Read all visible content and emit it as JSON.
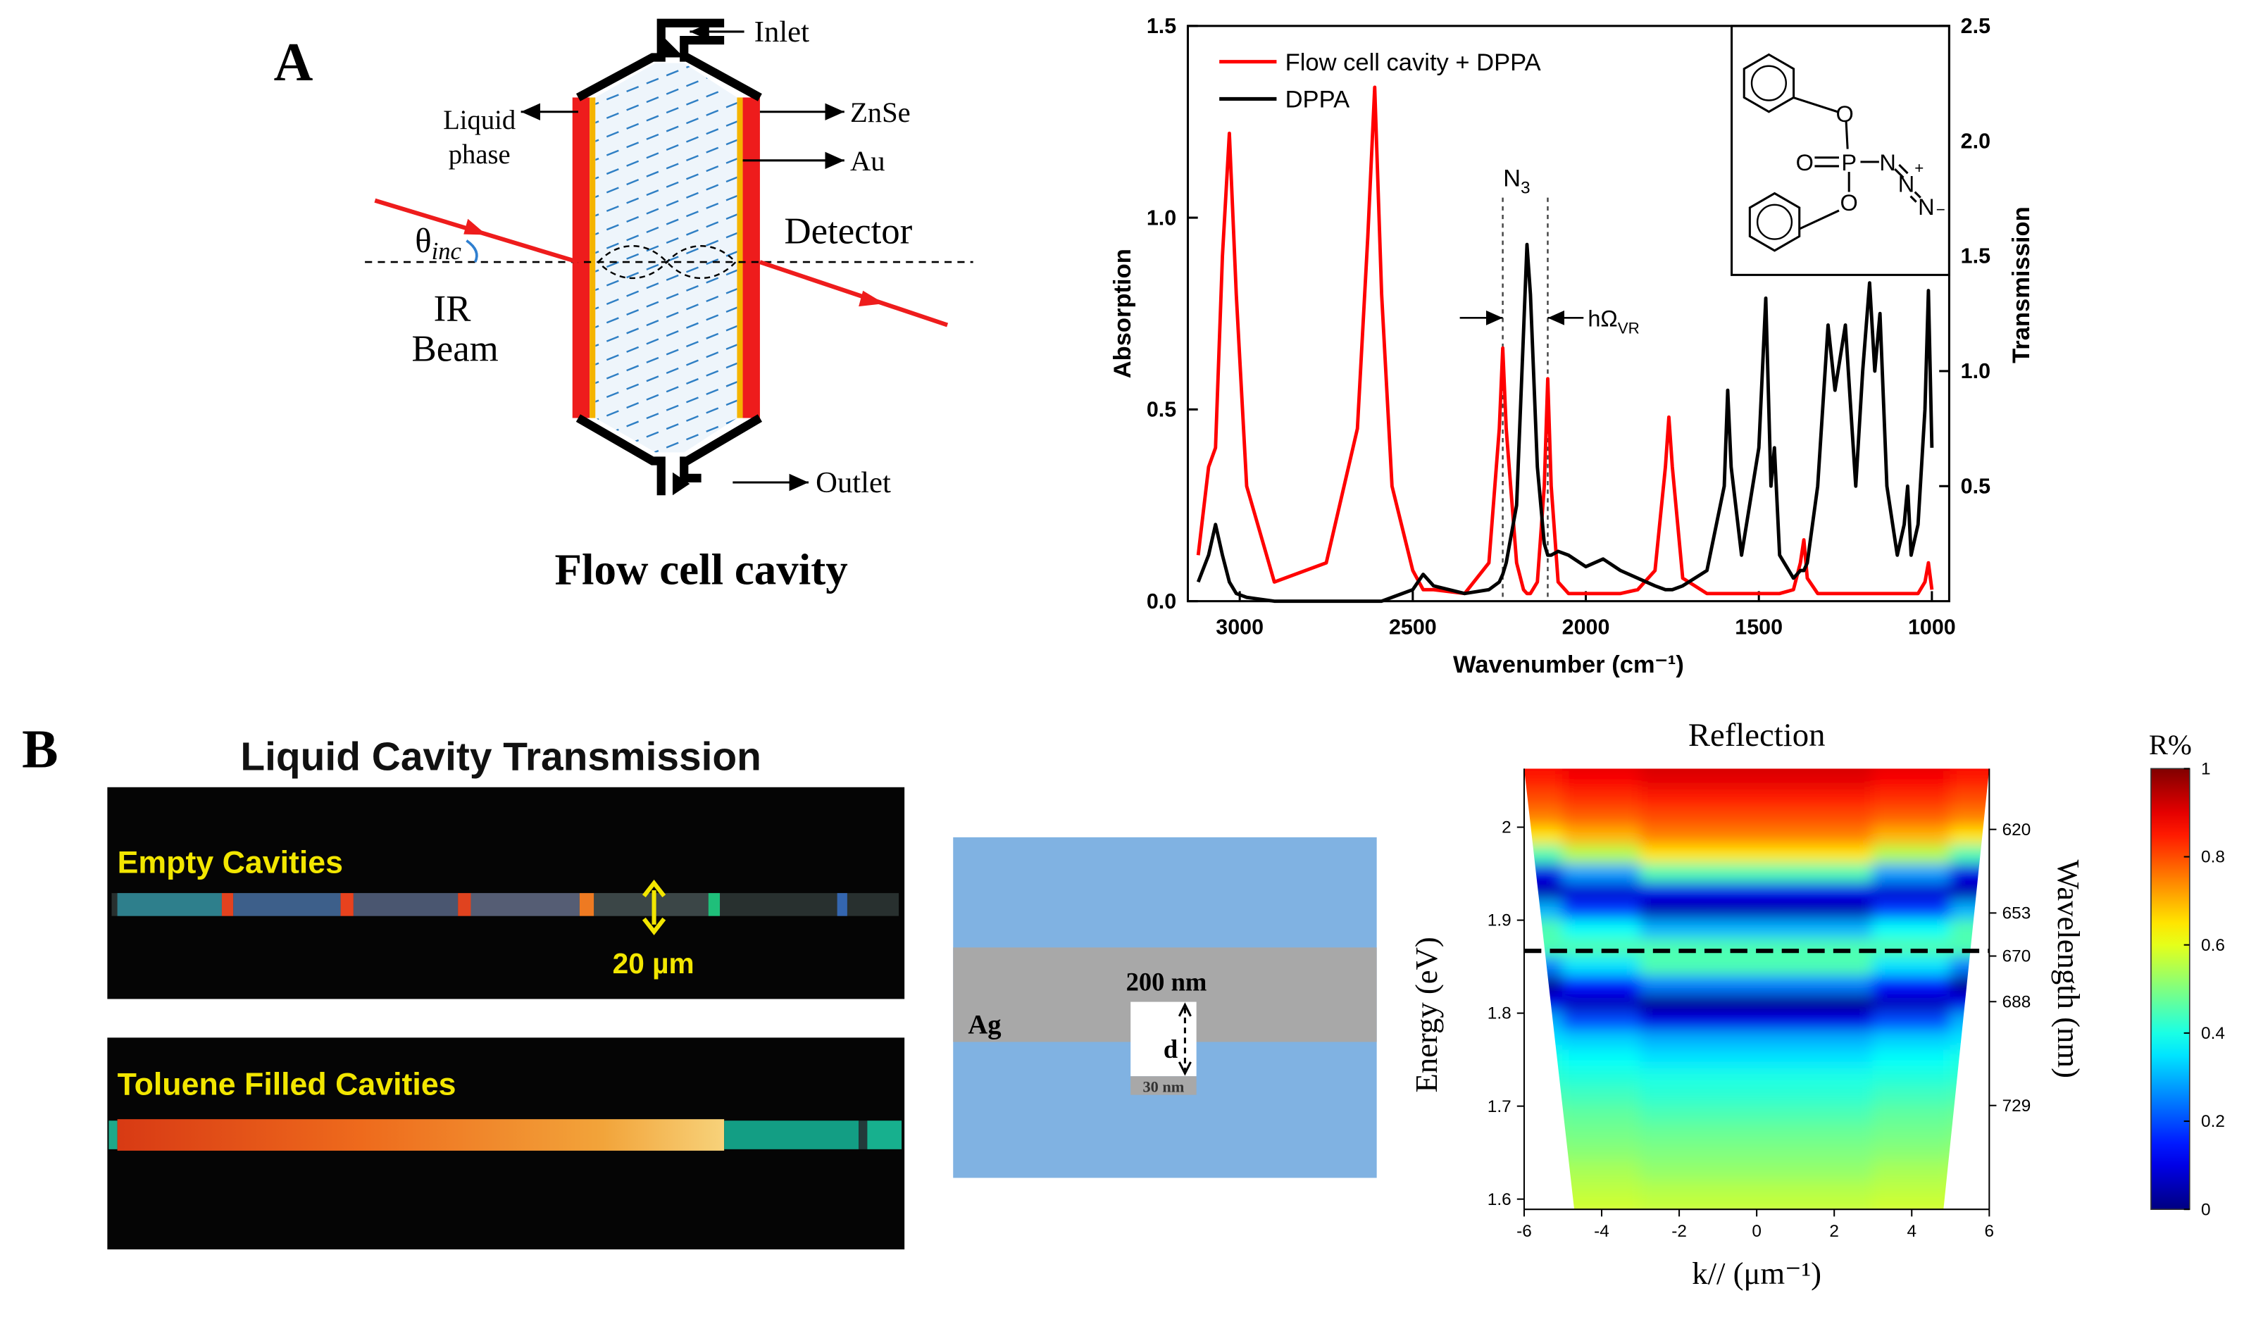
{
  "panel_a": {
    "label": "A",
    "flow_cell": {
      "title": "Flow cell cavity",
      "inlet": "Inlet",
      "liquid_phase": [
        "Liquid",
        "phase"
      ],
      "znse": "ZnSe",
      "au": "Au",
      "theta": {
        "main": "θ",
        "sub": "inc"
      },
      "detector": "Detector",
      "ir_beam": [
        "IR",
        "Beam"
      ],
      "outlet": "Outlet"
    }
  },
  "panel_b": {
    "label": "B",
    "photo": {
      "title": "Liquid Cavity Transmission",
      "top_label": "Empty Cavities",
      "scale": "20 µm",
      "bottom_label": "Toluene Filled Cavities"
    },
    "schematic": {
      "thickness": "200 nm",
      "metal": "Ag",
      "gap": "d",
      "gap_width": "30 nm"
    }
  },
  "chart_data": [
    {
      "type": "line",
      "xlabel": "Wavenumber (cm⁻¹)",
      "ylabel": "Absorption",
      "y2label": "Transmission",
      "x": [
        3120,
        3090,
        3070,
        3050,
        3030,
        3010,
        2980,
        2900,
        2750,
        2660,
        2630,
        2610,
        2590,
        2560,
        2500,
        2470,
        2440,
        2350,
        2280,
        2250,
        2240,
        2230,
        2200,
        2180,
        2170,
        2160,
        2140,
        2120,
        2110,
        2100,
        2080,
        2050,
        2000,
        1950,
        1900,
        1850,
        1800,
        1770,
        1760,
        1750,
        1720,
        1650,
        1600,
        1590,
        1580,
        1550,
        1500,
        1480,
        1465,
        1455,
        1440,
        1400,
        1380,
        1370,
        1360,
        1330,
        1300,
        1280,
        1250,
        1220,
        1200,
        1180,
        1165,
        1150,
        1130,
        1100,
        1080,
        1070,
        1060,
        1040,
        1020,
        1010,
        1000
      ],
      "xlim": [
        3150,
        950
      ],
      "xticks": [
        3000,
        2500,
        2000,
        1500,
        1000
      ],
      "ylim": [
        0,
        1.5
      ],
      "yticks": [
        {
          "value": 0,
          "label": "0.0"
        },
        {
          "value": 0.5,
          "label": "0.5"
        },
        {
          "value": 1,
          "label": "1.0"
        },
        {
          "value": 1.5,
          "label": "1.5"
        }
      ],
      "y2lim": [
        0,
        2.5
      ],
      "y2ticks": [
        {
          "value": 0.5,
          "label": "0.5"
        },
        {
          "value": 1,
          "label": "1.0"
        },
        {
          "value": 1.5,
          "label": "1.5"
        },
        {
          "value": 2,
          "label": "2.0"
        },
        {
          "value": 2.5,
          "label": "2.5"
        }
      ],
      "legend": "upper left",
      "series": [
        {
          "name": "Flow cell cavity + DPPA",
          "color": "#ff0000",
          "values": [
            0.12,
            0.35,
            0.4,
            0.9,
            1.22,
            0.8,
            0.3,
            0.05,
            0.1,
            0.45,
            0.95,
            1.34,
            0.8,
            0.3,
            0.08,
            0.03,
            0.03,
            0.02,
            0.1,
            0.45,
            0.66,
            0.45,
            0.1,
            0.03,
            0.02,
            0.02,
            0.05,
            0.3,
            0.58,
            0.3,
            0.05,
            0.02,
            0.02,
            0.02,
            0.02,
            0.03,
            0.08,
            0.35,
            0.48,
            0.35,
            0.06,
            0.02,
            0.02,
            0.02,
            0.02,
            0.02,
            0.02,
            0.02,
            0.02,
            0.02,
            0.02,
            0.03,
            0.1,
            0.16,
            0.06,
            0.02,
            0.02,
            0.02,
            0.02,
            0.02,
            0.02,
            0.02,
            0.02,
            0.02,
            0.02,
            0.02,
            0.02,
            0.02,
            0.02,
            0.02,
            0.05,
            0.1,
            0.03
          ]
        },
        {
          "name": "DPPA",
          "color": "#000000",
          "values": [
            0.05,
            0.12,
            0.2,
            0.12,
            0.05,
            0.02,
            0.01,
            0,
            0,
            0,
            0,
            0,
            0,
            0.01,
            0.03,
            0.07,
            0.04,
            0.02,
            0.03,
            0.05,
            0.07,
            0.1,
            0.25,
            0.7,
            0.93,
            0.8,
            0.35,
            0.15,
            0.12,
            0.12,
            0.13,
            0.12,
            0.09,
            0.11,
            0.08,
            0.06,
            0.04,
            0.03,
            0.03,
            0.03,
            0.04,
            0.08,
            0.3,
            0.55,
            0.35,
            0.12,
            0.4,
            0.79,
            0.3,
            0.4,
            0.12,
            0.06,
            0.08,
            0.08,
            0.1,
            0.3,
            0.72,
            0.55,
            0.72,
            0.3,
            0.6,
            0.83,
            0.6,
            0.75,
            0.3,
            0.12,
            0.2,
            0.3,
            0.12,
            0.2,
            0.5,
            0.81,
            0.4
          ]
        }
      ],
      "annotations": {
        "band": {
          "main": "N",
          "sub": "3"
        },
        "splitting": {
          "main": "hΩ",
          "sub": "VR"
        }
      },
      "band_edges": [
        2240,
        2110
      ],
      "inset_atoms": [
        "O",
        "O",
        "P",
        "O",
        "N",
        "N",
        "N",
        "+",
        "−"
      ]
    },
    {
      "type": "heatmap",
      "title": "Reflection",
      "xlabel": "k// (μm⁻¹)",
      "ylabel": "Energy (eV)",
      "y2label": "Wavelength (nm)",
      "x": [
        -6,
        -4,
        -2,
        0,
        2,
        4,
        6
      ],
      "y": [
        2.07,
        2.05,
        2.03,
        2.01,
        1.99,
        1.97,
        1.95,
        1.93,
        1.91,
        1.89,
        1.87,
        1.85,
        1.83,
        1.81,
        1.79,
        1.77,
        1.75,
        1.73,
        1.71,
        1.69,
        1.67,
        1.65,
        1.63,
        1.61,
        1.59
      ],
      "z": [
        [
          0.88,
          0.9,
          0.92,
          0.92,
          0.92,
          0.9,
          0.88
        ],
        [
          0.85,
          0.88,
          0.9,
          0.9,
          0.9,
          0.88,
          0.85
        ],
        [
          0.8,
          0.83,
          0.85,
          0.85,
          0.85,
          0.83,
          0.8
        ],
        [
          0.75,
          0.78,
          0.8,
          0.8,
          0.8,
          0.78,
          0.75
        ],
        [
          0.65,
          0.7,
          0.75,
          0.75,
          0.75,
          0.7,
          0.65
        ],
        [
          0.45,
          0.55,
          0.65,
          0.65,
          0.65,
          0.55,
          0.45
        ],
        [
          0.1,
          0.28,
          0.45,
          0.45,
          0.45,
          0.28,
          0.1
        ],
        [
          0.05,
          0.08,
          0.1,
          0.1,
          0.1,
          0.08,
          0.05
        ],
        [
          0.3,
          0.18,
          0.05,
          0.05,
          0.05,
          0.18,
          0.3
        ],
        [
          0.45,
          0.38,
          0.3,
          0.3,
          0.3,
          0.38,
          0.45
        ],
        [
          0.45,
          0.45,
          0.45,
          0.45,
          0.45,
          0.45,
          0.45
        ],
        [
          0.25,
          0.35,
          0.45,
          0.45,
          0.45,
          0.35,
          0.25
        ],
        [
          0.02,
          0.14,
          0.25,
          0.25,
          0.25,
          0.14,
          0.02
        ],
        [
          0.1,
          0.06,
          0.02,
          0.02,
          0.02,
          0.06,
          0.1
        ],
        [
          0.3,
          0.2,
          0.1,
          0.1,
          0.1,
          0.2,
          0.3
        ],
        [
          0.35,
          0.33,
          0.3,
          0.3,
          0.3,
          0.33,
          0.35
        ],
        [
          0.4,
          0.38,
          0.35,
          0.35,
          0.35,
          0.38,
          0.4
        ],
        [
          0.42,
          0.41,
          0.4,
          0.4,
          0.4,
          0.41,
          0.42
        ],
        [
          0.45,
          0.44,
          0.42,
          0.42,
          0.42,
          0.44,
          0.45
        ],
        [
          0.48,
          0.47,
          0.45,
          0.45,
          0.45,
          0.47,
          0.48
        ],
        [
          0.5,
          0.49,
          0.48,
          0.48,
          0.48,
          0.49,
          0.5
        ],
        [
          0.52,
          0.51,
          0.5,
          0.5,
          0.5,
          0.51,
          0.52
        ],
        [
          0.55,
          0.54,
          0.52,
          0.52,
          0.52,
          0.54,
          0.55
        ],
        [
          0.57,
          0.56,
          0.55,
          0.55,
          0.55,
          0.56,
          0.57
        ],
        [
          0.58,
          0.58,
          0.57,
          0.57,
          0.57,
          0.58,
          0.58
        ]
      ],
      "xlim": [
        -6,
        6
      ],
      "xticks": [
        -6,
        -4,
        -2,
        0,
        2,
        4,
        6
      ],
      "ylim": [
        1.589,
        2.063
      ],
      "yticks": [
        1.6,
        1.7,
        1.8,
        1.9,
        2
      ],
      "y2lim": [
        770,
        596
      ],
      "y2ticks": [
        620,
        653,
        670,
        688,
        729
      ],
      "hline": 1.867,
      "colormap": "jet",
      "colorbar": {
        "label": "R%",
        "lim": [
          0,
          1
        ],
        "ticks": [
          0,
          0.2,
          0.4,
          0.6,
          0.8,
          1
        ]
      }
    }
  ]
}
